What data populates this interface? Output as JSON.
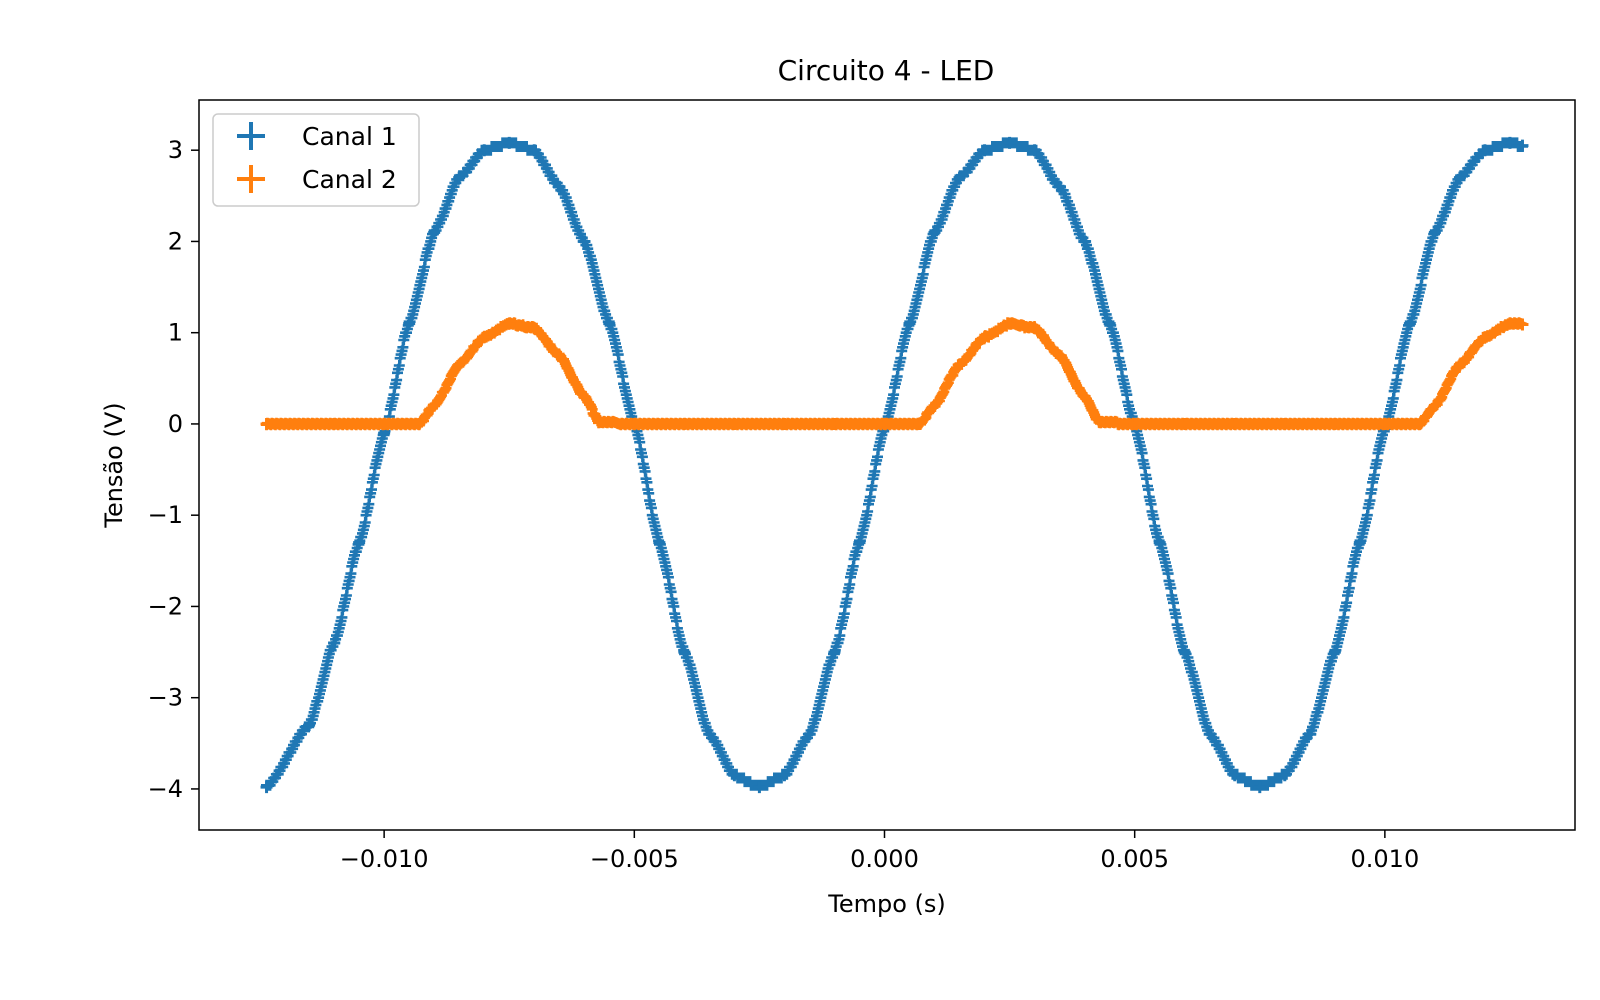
{
  "chart_data": {
    "type": "scatter",
    "title": "Circuito 4 - LED",
    "xlabel": "Tempo (s)",
    "ylabel": "Tensão (V)",
    "xlim": [
      -0.0137,
      0.0138
    ],
    "ylim": [
      -4.45,
      3.55
    ],
    "xticks": [
      -0.01,
      -0.005,
      0.0,
      0.005,
      0.01
    ],
    "xtick_labels": [
      "−0.010",
      "−0.005",
      "0.000",
      "0.005",
      "0.010"
    ],
    "yticks": [
      3,
      2,
      1,
      0,
      -1,
      -2,
      -3,
      -4
    ],
    "ytick_labels": [
      "3",
      "2",
      "1",
      "0",
      "−1",
      "−2",
      "−3",
      "−4"
    ],
    "grid": false,
    "legend_position": "upper-left",
    "marker": "plus",
    "x_range": [
      -0.01235,
      0.01275
    ],
    "series": [
      {
        "name": "Canal 1",
        "color": "#1f77b4",
        "description_values": {
          "frequency_hz": 100,
          "peaks_at_x": [
            -0.0075,
            0.0025,
            0.0125
          ],
          "troughs_at_x": [
            -0.0025,
            0.0075
          ],
          "max": 3.08,
          "min": -3.98
        },
        "x": [
          -0.01235,
          -0.0115,
          -0.011,
          -0.0105,
          -0.01,
          -0.0095,
          -0.009,
          -0.0085,
          -0.008,
          -0.0075,
          -0.007,
          -0.0065,
          -0.006,
          -0.0055,
          -0.005,
          -0.0045,
          -0.004,
          -0.0035,
          -0.003,
          -0.0025,
          -0.002,
          -0.0015,
          -0.001,
          -0.0005,
          0.0,
          0.0005,
          0.001,
          0.0015,
          0.002,
          0.0025,
          0.003,
          0.0035,
          0.004,
          0.0045,
          0.005,
          0.0055,
          0.006,
          0.0065,
          0.007,
          0.0075,
          0.008,
          0.0085,
          0.009,
          0.0095,
          0.01,
          0.0105,
          0.011,
          0.0115,
          0.012,
          0.0125,
          0.01275
        ],
        "y": [
          -3.98,
          -3.3,
          -2.4,
          -1.3,
          -0.1,
          1.1,
          2.1,
          2.7,
          3.0,
          3.08,
          3.0,
          2.6,
          2.0,
          1.1,
          0.0,
          -1.3,
          -2.5,
          -3.4,
          -3.85,
          -3.98,
          -3.85,
          -3.4,
          -2.5,
          -1.3,
          -0.05,
          1.1,
          2.1,
          2.7,
          3.0,
          3.08,
          3.0,
          2.6,
          2.0,
          1.1,
          0.0,
          -1.3,
          -2.5,
          -3.4,
          -3.85,
          -3.98,
          -3.85,
          -3.4,
          -2.5,
          -1.3,
          -0.05,
          1.1,
          2.1,
          2.7,
          3.0,
          3.08,
          3.05
        ]
      },
      {
        "name": "Canal 2",
        "color": "#ff7f0e",
        "description_values": {
          "max": 1.1,
          "baseline": 0.0,
          "pulse_peaks_at_x": [
            -0.0075,
            0.0025,
            0.0125
          ]
        },
        "x": [
          -0.01235,
          -0.011,
          -0.01,
          -0.0093,
          -0.009,
          -0.0085,
          -0.008,
          -0.0075,
          -0.007,
          -0.0065,
          -0.006,
          -0.0057,
          -0.005,
          -0.004,
          -0.003,
          -0.002,
          -0.001,
          0.0,
          0.0007,
          0.001,
          0.0015,
          0.002,
          0.0025,
          0.003,
          0.0035,
          0.004,
          0.0043,
          0.005,
          0.006,
          0.007,
          0.008,
          0.009,
          0.01,
          0.0107,
          0.011,
          0.0115,
          0.012,
          0.0125,
          0.01275
        ],
        "y": [
          0.0,
          0.0,
          0.0,
          0.0,
          0.2,
          0.65,
          0.95,
          1.1,
          1.05,
          0.75,
          0.3,
          0.02,
          0.0,
          0.0,
          0.0,
          0.0,
          0.0,
          0.0,
          0.0,
          0.2,
          0.65,
          0.95,
          1.1,
          1.05,
          0.75,
          0.3,
          0.02,
          0.0,
          0.0,
          0.0,
          0.0,
          0.0,
          0.0,
          0.0,
          0.2,
          0.65,
          0.95,
          1.1,
          1.09
        ]
      }
    ]
  }
}
